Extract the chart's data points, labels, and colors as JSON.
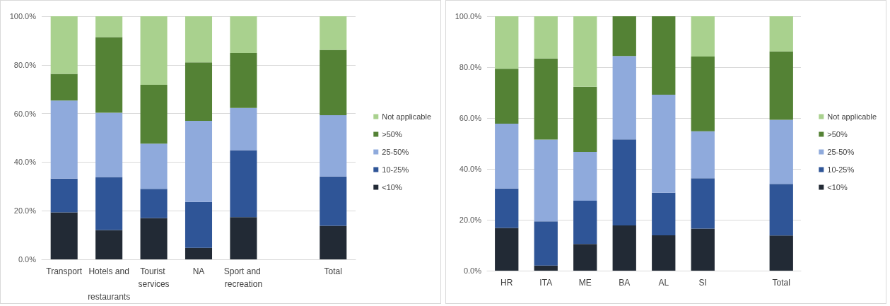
{
  "chart_data": [
    {
      "type": "bar",
      "stacked": true,
      "categories": [
        "Transport",
        "Hotels and restaurants",
        "Tourist services",
        "NA",
        "Sport and recreation",
        null,
        "Total"
      ],
      "ylim": [
        0,
        100
      ],
      "yticks": [
        {
          "value": 0,
          "label": "0.0%"
        },
        {
          "value": 20,
          "label": "20.0%"
        },
        {
          "value": 40,
          "label": "40.0%"
        },
        {
          "value": 60,
          "label": "60.0%"
        },
        {
          "value": 80,
          "label": "80.0%"
        },
        {
          "value": 100,
          "label": "100.0%"
        }
      ],
      "grid": "y",
      "legend": "right",
      "series": [
        {
          "name": "<10%",
          "color": "#222a35",
          "values": [
            19.3,
            12.1,
            17.0,
            4.7,
            17.4,
            null,
            13.8
          ]
        },
        {
          "name": "10-25%",
          "color": "#2f5597",
          "values": [
            13.9,
            21.8,
            12.0,
            18.9,
            27.5,
            null,
            20.3
          ]
        },
        {
          "name": "25-50%",
          "color": "#8faadc",
          "values": [
            32.1,
            26.4,
            18.6,
            33.4,
            17.4,
            null,
            25.2
          ]
        },
        {
          "name": ">50%",
          "color": "#548235",
          "values": [
            11.0,
            31.1,
            24.2,
            24.0,
            22.6,
            null,
            26.9
          ]
        },
        {
          "name": "Not applicable",
          "color": "#a9d18e",
          "values": [
            23.7,
            8.6,
            28.2,
            19.0,
            15.1,
            null,
            13.8
          ]
        }
      ]
    },
    {
      "type": "bar",
      "stacked": true,
      "categories": [
        "HR",
        "ITA",
        "ME",
        "BA",
        "AL",
        "SI",
        null,
        "Total"
      ],
      "ylim": [
        0,
        100
      ],
      "yticks": [
        {
          "value": 0,
          "label": "0.0%"
        },
        {
          "value": 20,
          "label": "20.0%"
        },
        {
          "value": 40,
          "label": "40.0%"
        },
        {
          "value": 60,
          "label": "60.0%"
        },
        {
          "value": 80,
          "label": "80.0%"
        },
        {
          "value": 100,
          "label": "100.0%"
        }
      ],
      "grid": "y",
      "legend": "right",
      "series": [
        {
          "name": "<10%",
          "color": "#222a35",
          "values": [
            16.8,
            2.0,
            10.5,
            17.8,
            13.9,
            16.5,
            null,
            13.8
          ]
        },
        {
          "name": "10-25%",
          "color": "#2f5597",
          "values": [
            15.5,
            17.4,
            17.0,
            33.8,
            16.7,
            19.8,
            null,
            20.3
          ]
        },
        {
          "name": "25-50%",
          "color": "#8faadc",
          "values": [
            25.5,
            32.1,
            19.2,
            32.8,
            38.6,
            18.5,
            null,
            25.2
          ]
        },
        {
          "name": ">50%",
          "color": "#548235",
          "values": [
            21.6,
            31.9,
            25.6,
            15.6,
            30.8,
            29.4,
            null,
            26.9
          ]
        },
        {
          "name": "Not applicable",
          "color": "#a9d18e",
          "values": [
            20.6,
            16.6,
            27.7,
            0,
            0,
            15.8,
            null,
            13.8
          ]
        }
      ]
    }
  ]
}
